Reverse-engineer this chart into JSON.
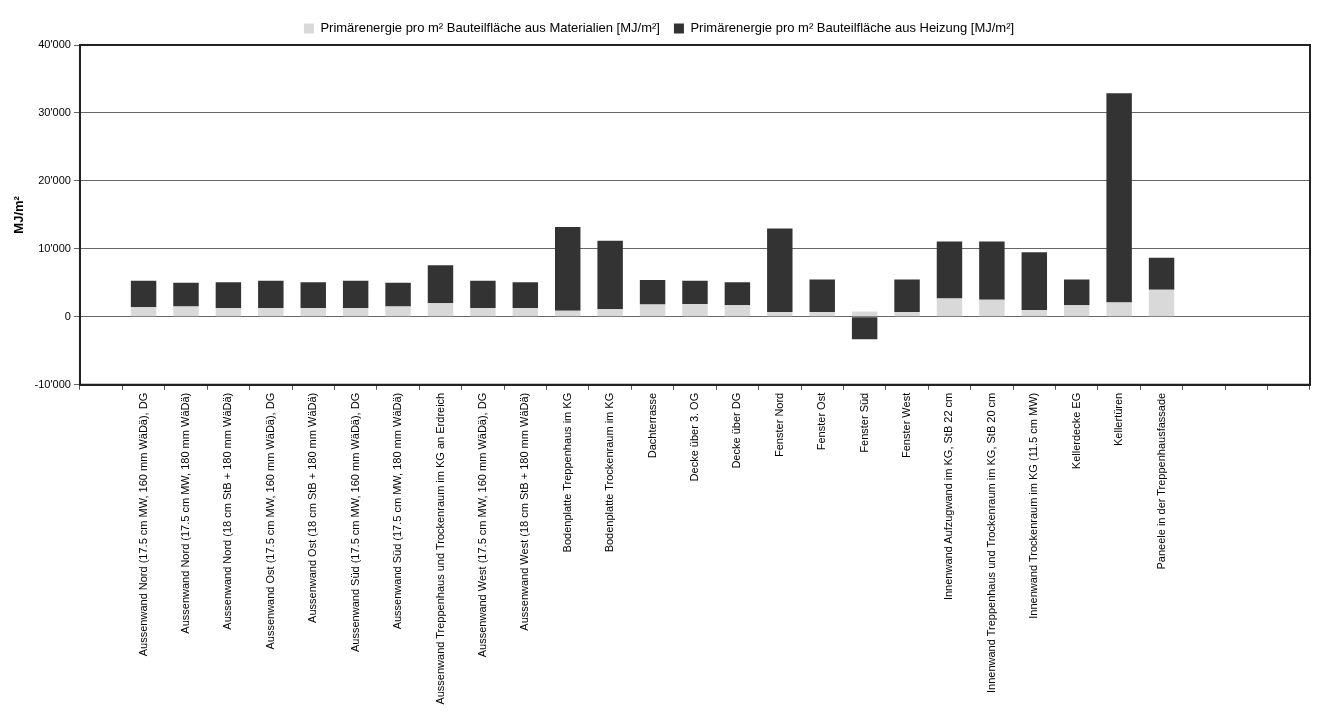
{
  "chart_data": {
    "type": "bar",
    "stacked": true,
    "ylabel": "MJ/m²",
    "legend": "top",
    "grid": "y",
    "categories": [
      null,
      "Aussenwand Nord (17.5 cm MW, 160 mm WäDä), DG",
      "Aussenwand Nord (17.5 cm MW, 180 mm WäDä)",
      "Aussenwand Nord (18 cm StB + 180 mm WäDä)",
      "Aussenwand Ost (17.5 cm MW, 160 mm WäDä), DG",
      "Aussenwand Ost (18 cm StB + 180 mm WäDä)",
      "Aussenwand Süd (17.5 cm MW, 160 mm WäDä), DG",
      "Aussenwand Süd (17.5 cm MW, 180 mm WäDä)",
      "Aussenwand Treppenhaus und Trockenraum im KG an Erdreich",
      "Aussenwand West (17.5 cm MW, 160 mm WäDä), DG",
      "Aussenwand West (18 cm StB + 180 mm WäDä)",
      "Bodenplatte Treppenhaus im KG",
      "Bodenplatte Trockenraum im KG",
      "Dachterrasse",
      "Decke über 3. OG",
      "Decke über DG",
      "Fenster Nord",
      "Fenster Ost",
      "Fenster Süd",
      "Fenster West",
      "Innenwand Aufzugwand im KG, StB 22 cm",
      "Innenwand Treppenhaus und Trockenraum im KG, StB 20 cm",
      "Innenwand Trockenraum im KG (11.5 cm MW)",
      "Kellerdecke EG",
      "Kellertüren",
      "Paneele in der Treppenhausfassade",
      null,
      null,
      null
    ],
    "series": [
      {
        "name": "Primärenergie pro m² Bauteilfläche aus Materialien [MJ/m²]",
        "color": "#d9d9d9",
        "values": [
          null,
          1400,
          1500,
          1300,
          1300,
          1300,
          1300,
          1500,
          2000,
          1300,
          1300,
          900,
          1100,
          1800,
          1900,
          1700,
          700,
          700,
          800,
          700,
          2700,
          2500,
          1000,
          1700,
          2100,
          4000,
          null,
          null,
          null
        ]
      },
      {
        "name": "Primärenergie pro m² Bauteilfläche aus Heizung [MJ/m²]",
        "color": "#333333",
        "values": [
          null,
          3900,
          3500,
          3800,
          4000,
          3800,
          4000,
          3500,
          5600,
          4000,
          3800,
          12300,
          10100,
          3600,
          3400,
          3400,
          12300,
          4800,
          -3300,
          4800,
          8400,
          8600,
          8500,
          3800,
          30800,
          4700,
          null,
          null,
          null
        ]
      }
    ],
    "ylim": [
      -10000,
      40000
    ],
    "yticks": [
      {
        "value": -10000,
        "label": "-10'000"
      },
      0,
      {
        "value": 10000,
        "label": "10'000"
      },
      {
        "value": 20000,
        "label": "20'000"
      },
      {
        "value": 30000,
        "label": "30'000"
      },
      {
        "value": 40000,
        "label": "40'000"
      }
    ]
  }
}
